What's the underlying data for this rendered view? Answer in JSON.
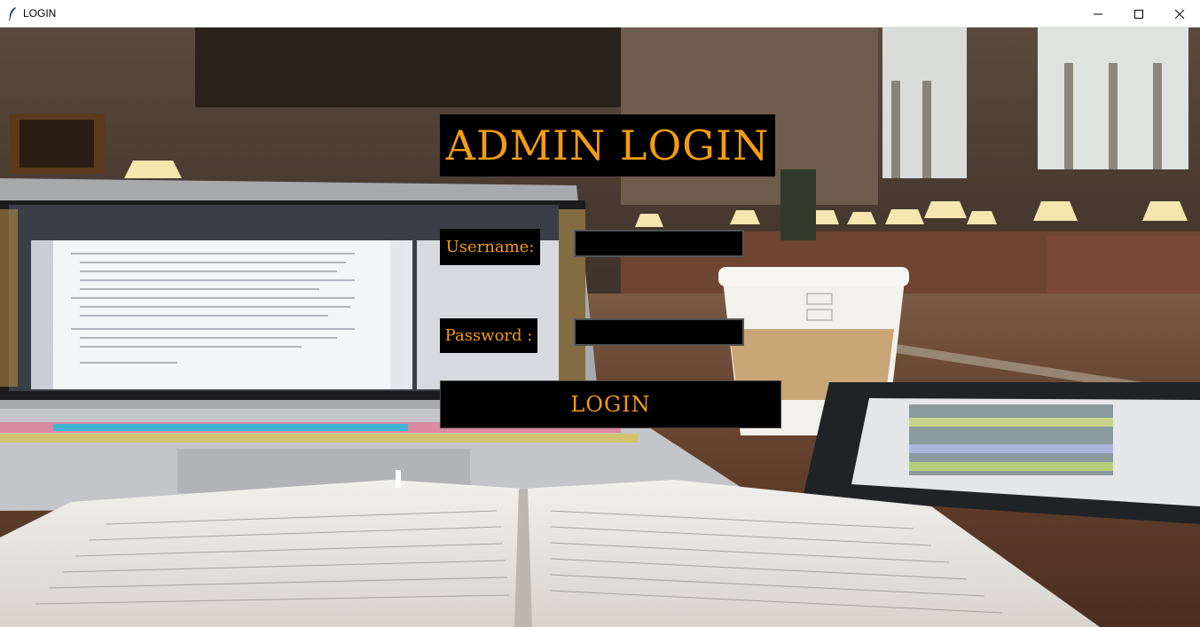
{
  "window": {
    "title": "LOGIN",
    "app_icon": "feather-icon",
    "controls": [
      "minimize-icon",
      "maximize-icon",
      "close-icon"
    ]
  },
  "login": {
    "heading": "ADMIN  LOGIN",
    "username_label": "Username:",
    "username_value": "",
    "password_label": "Password :",
    "password_value": "",
    "submit_label": "LOGIN"
  },
  "colors": {
    "accent": "#f39c12",
    "widget_bg": "#000000",
    "titlebar_bg": "#ffffff"
  }
}
